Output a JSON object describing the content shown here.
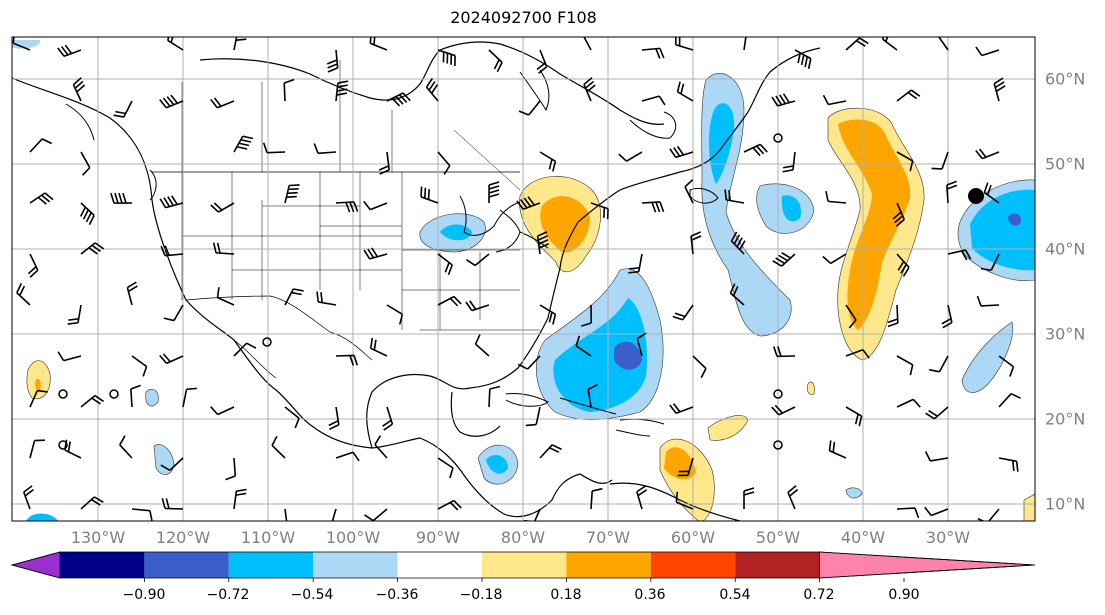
{
  "title": "2024092700 F108",
  "lon_labels": [
    "130°W",
    "120°W",
    "110°W",
    "100°W",
    "90°W",
    "80°W",
    "70°W",
    "60°W",
    "50°W",
    "40°W",
    "30°W"
  ],
  "lat_labels": [
    "60°N",
    "50°N",
    "40°N",
    "30°N",
    "20°N",
    "10°N"
  ],
  "colorbar": {
    "ticks": [
      "−0.90",
      "−0.72",
      "−0.54",
      "−0.36",
      "−0.18",
      "0.18",
      "0.36",
      "0.54",
      "0.72",
      "0.90"
    ],
    "colors": [
      "#9b30d0",
      "#00008b",
      "#3a5fcd",
      "#00bfff",
      "#add8f5",
      "#ffffff",
      "#ffe88c",
      "#ffa500",
      "#ff4500",
      "#b22222",
      "#ff82ab"
    ]
  },
  "features": {
    "grid_color": "#b0b0b0",
    "station_marker": "filled-circle"
  }
}
